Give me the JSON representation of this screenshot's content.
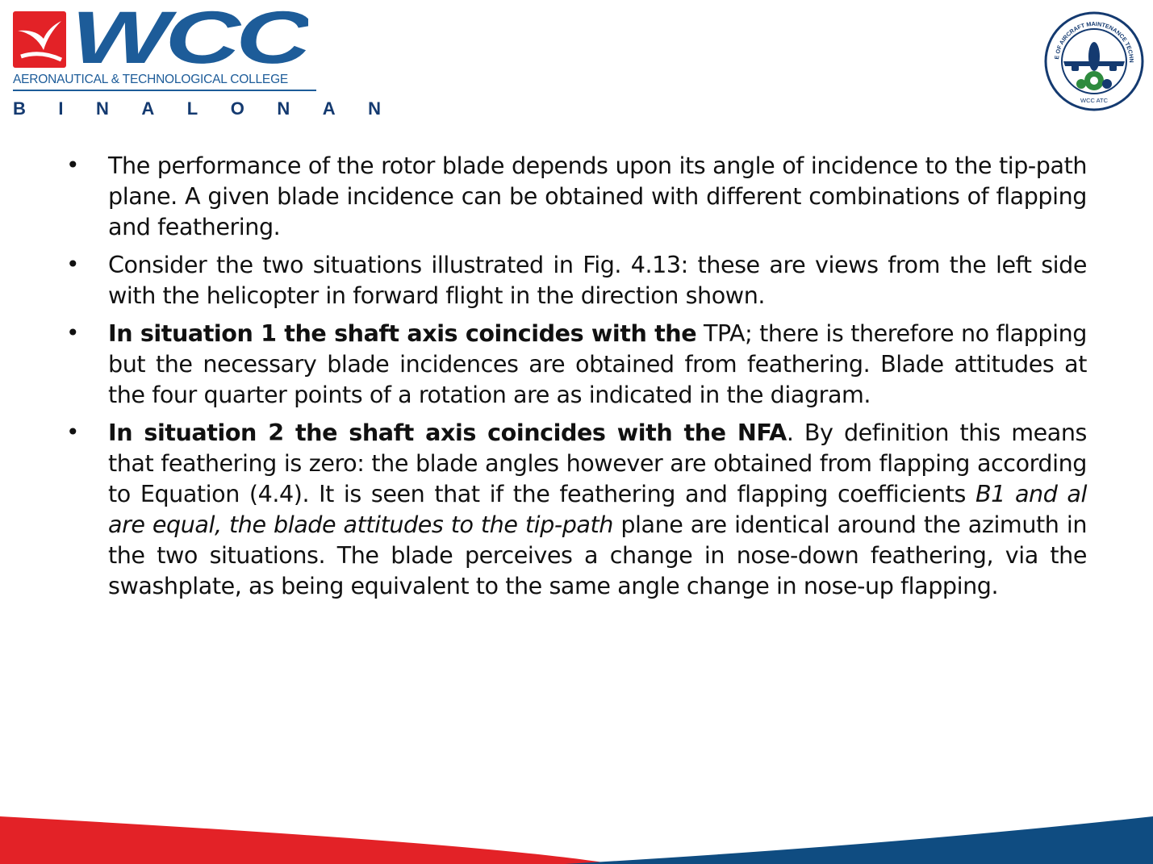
{
  "header": {
    "logo_text": "WCC",
    "logo_subtitle": "AERONAUTICAL & TECHNOLOGICAL COLLEGE",
    "logo_city": "BINALONAN",
    "seal_text": "COLLEGE OF AIRCRAFT MAINTENANCE TECHNOLOGY",
    "seal_bottom": "WCC ATC"
  },
  "colors": {
    "brand_blue": "#1d5c99",
    "navy": "#143a70",
    "red": "#e32227",
    "dark_blue": "#0f4c81"
  },
  "bullets": [
    {
      "segments": [
        {
          "text": "The performance of the rotor blade depends upon its angle of  incidence to the tip-path plane. A given blade incidence can be obtained with different combinations of flapping and feathering.",
          "style": "normal"
        }
      ]
    },
    {
      "segments": [
        {
          "text": "Consider the two situations illustrated in Fig. 4.13: these are views from the left side with the helicopter in forward flight in the direction shown.",
          "style": "normal"
        }
      ]
    },
    {
      "segments": [
        {
          "text": " In situation 1 the shaft axis coincides with the",
          "style": "bold"
        },
        {
          "text": " TPA; there is therefore no flapping but the necessary blade incidences are obtained from feathering. Blade attitudes at the four quarter points of a rotation are as indicated in the diagram.",
          "style": "normal"
        }
      ]
    },
    {
      "segments": [
        {
          "text": " In situation 2 the shaft axis coincides with the NFA",
          "style": "bold"
        },
        {
          "text": ". By definition this means that feathering is zero: the blade angles however are obtained from flapping according to Equation (4.4). It is seen that if the feathering and flapping coefficients ",
          "style": "normal"
        },
        {
          "text": "B1 and al are equal, the blade attitudes to the tip-path",
          "style": "italic"
        },
        {
          "text": " plane are identical around the azimuth in the two situations. The blade perceives a change in nose-down feathering, via the swashplate, as being equivalent to the same angle change in nose-up flapping.",
          "style": "normal"
        }
      ]
    }
  ]
}
